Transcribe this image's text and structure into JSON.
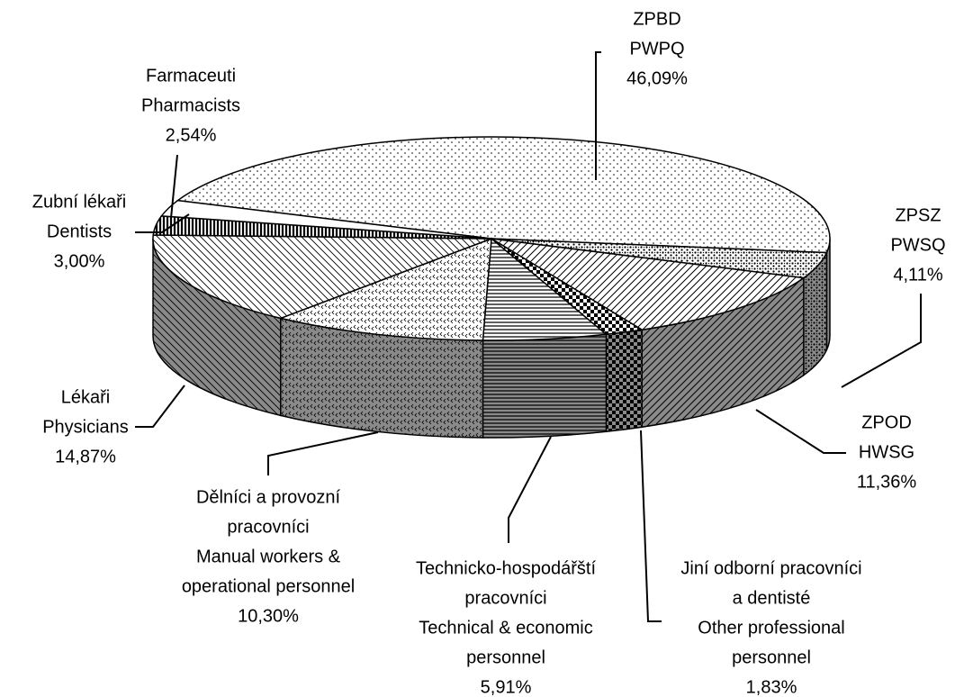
{
  "chart_data": {
    "type": "pie3d",
    "categories": [
      [
        "ZPBD",
        "PWPQ"
      ],
      [
        "ZPSZ",
        "PWSQ"
      ],
      [
        "ZPOD",
        "HWSG"
      ],
      [
        "Jiní odborní pracovníci",
        "a dentisté",
        "Other professional",
        "personnel"
      ],
      [
        "Technicko-hospodářští",
        "pracovníci",
        "Technical & economic",
        "personnel"
      ],
      [
        "Dělníci a provozní",
        "pracovníci",
        "Manual workers &",
        "operational personnel"
      ],
      [
        "Lékaři",
        "Physicians"
      ],
      [
        "Zubní lékaři",
        "Dentists"
      ],
      [
        "Farmaceuti",
        "Pharmacists"
      ]
    ],
    "values": [
      46.09,
      4.11,
      11.36,
      1.83,
      5.91,
      10.3,
      14.87,
      3.0,
      2.54
    ],
    "value_labels": [
      "46,09%",
      "4,11%",
      "11,36%",
      "1,83%",
      "5,91%",
      "10,30%",
      "14,87%",
      "3,00%",
      "2,54%"
    ]
  }
}
